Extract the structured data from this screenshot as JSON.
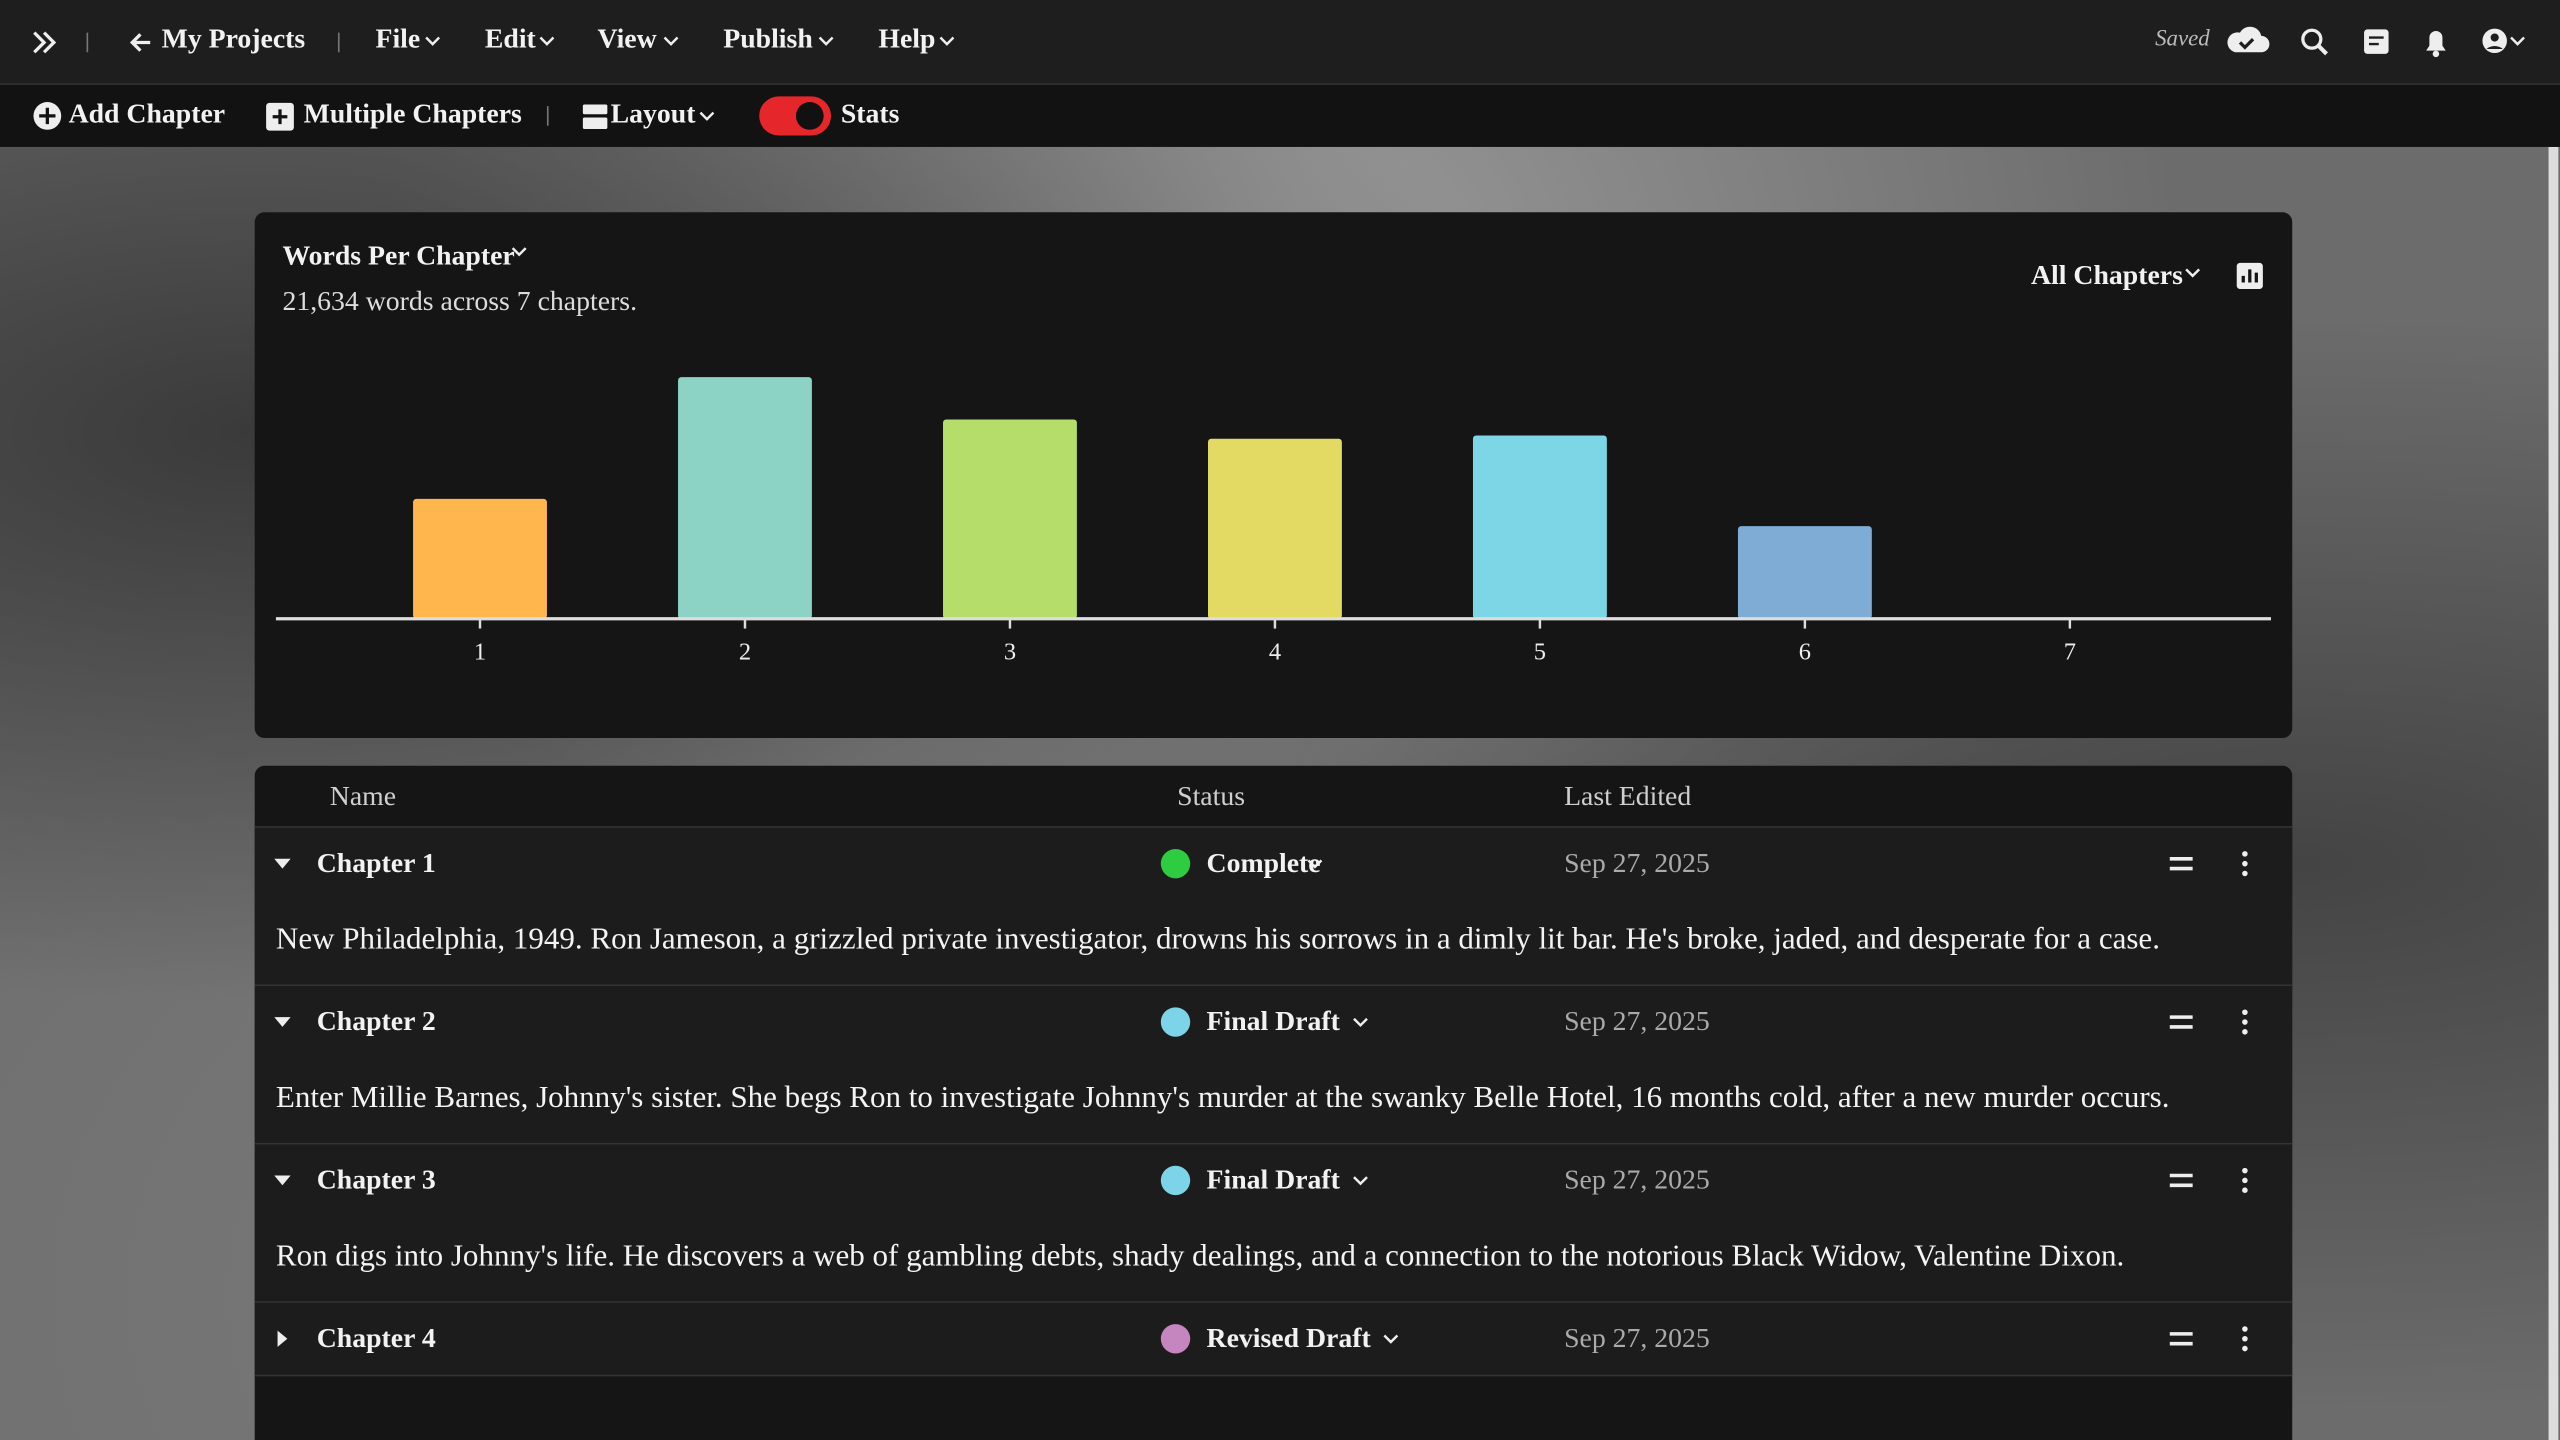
{
  "toolbar": {
    "project_link": "My Projects",
    "menus": [
      "File",
      "Edit",
      "View",
      "Publish",
      "Help"
    ],
    "status": "Saved"
  },
  "actions": {
    "add": "Add Chapter",
    "multiple": "Multiple Chapters",
    "layout": "Layout",
    "stats": "Stats"
  },
  "chart_card": {
    "selector": "All Chapters"
  },
  "chart_data": {
    "type": "bar",
    "title": "Words Per Chapter",
    "subtitle": "21,634 words across 7 chapters.",
    "categories": [
      "1",
      "2",
      "3",
      "4",
      "5",
      "6",
      "7"
    ],
    "values": [
      2550,
      5140,
      4240,
      3830,
      3900,
      1970,
      0
    ],
    "colors": [
      "#ffb74d",
      "#8cd3c5",
      "#b4dd6a",
      "#e3da64",
      "#7dd6e6",
      "#7eacd5",
      "#b39ddb"
    ],
    "ylim": [
      0,
      5800
    ]
  },
  "table": {
    "columns": [
      "Name",
      "Status",
      "Last Edited"
    ],
    "rows": [
      {
        "name": "Chapter 1",
        "status": "Complete",
        "status_color": "#2ecc40",
        "edited": "Sep 27, 2025",
        "summary": "New Philadelphia, 1949. Ron Jameson, a grizzled private investigator, drowns his sorrows in a dimly lit bar. He's broke, jaded, and desperate for a case."
      },
      {
        "name": "Chapter 2",
        "status": "Final Draft",
        "status_color": "#7dd3e8",
        "edited": "Sep 27, 2025",
        "summary": "Enter Millie Barnes, Johnny's sister. She begs Ron to investigate Johnny's murder at the swanky Belle Hotel, 16 months cold, after a new murder occurs."
      },
      {
        "name": "Chapter 3",
        "status": "Final Draft",
        "status_color": "#7dd3e8",
        "edited": "Sep 27, 2025",
        "summary": "Ron digs into Johnny's life. He discovers a web of gambling debts, shady dealings, and a connection to the notorious Black Widow, Valentine Dixon."
      },
      {
        "name": "Chapter 4",
        "status": "Revised Draft",
        "status_color": "#c586c0",
        "edited": "Sep 27, 2025"
      }
    ]
  }
}
